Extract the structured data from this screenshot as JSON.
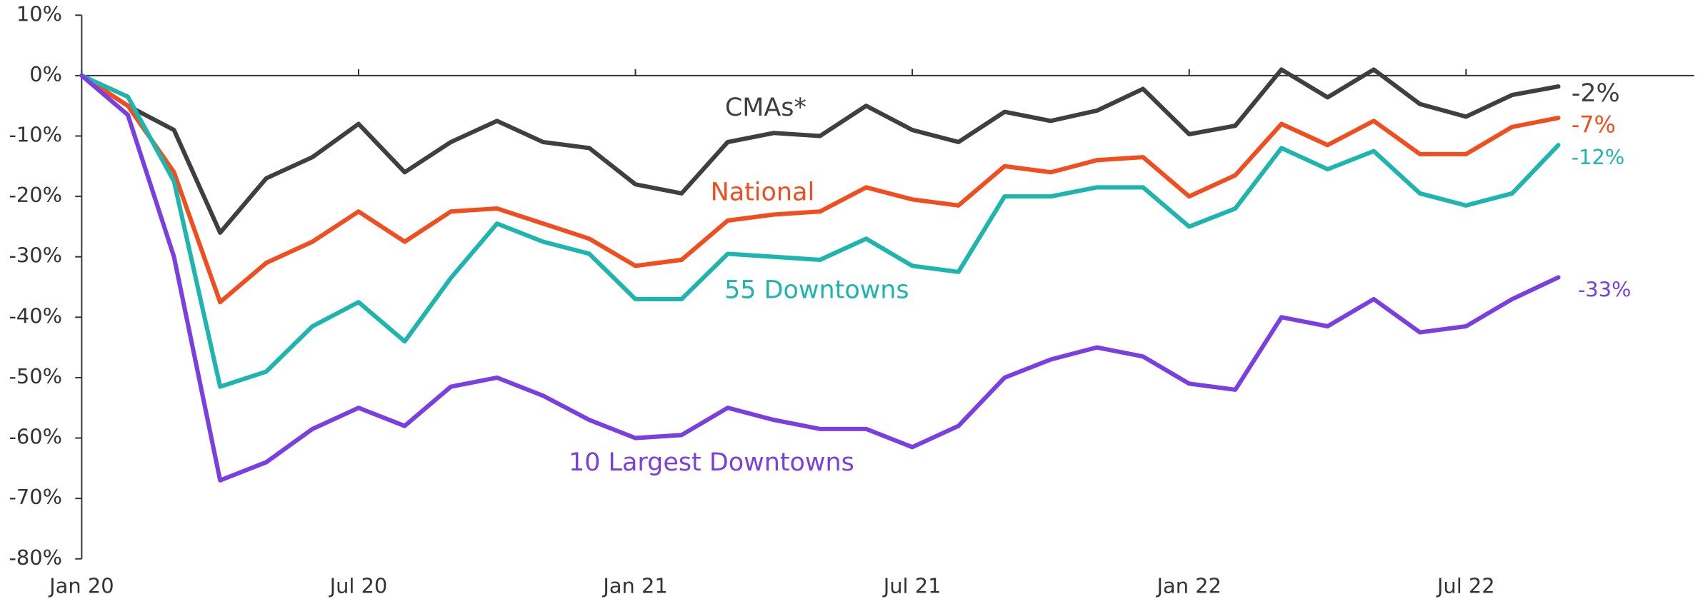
{
  "chart_data": {
    "type": "line",
    "categories": [
      "Jan 20",
      null,
      null,
      null,
      null,
      null,
      "Jul 20",
      null,
      null,
      null,
      null,
      null,
      "Jan 21",
      null,
      null,
      null,
      null,
      null,
      "Jul 21",
      null,
      null,
      null,
      null,
      null,
      "Jan 22",
      null,
      null,
      null,
      null,
      null,
      "Jul 22",
      null,
      null
    ],
    "ylim": [
      -80,
      10
    ],
    "yticks": [
      {
        "value": 10,
        "label": "10%"
      },
      {
        "value": 0,
        "label": "0%"
      },
      {
        "value": -10,
        "label": "-10%"
      },
      {
        "value": -20,
        "label": "-20%"
      },
      {
        "value": -30,
        "label": "-30%"
      },
      {
        "value": -40,
        "label": "-40%"
      },
      {
        "value": -50,
        "label": "-50%"
      },
      {
        "value": -60,
        "label": "-60%"
      },
      {
        "value": -70,
        "label": "-70%"
      },
      {
        "value": -80,
        "label": "-80%"
      }
    ],
    "series": [
      {
        "name": "CMAs*",
        "color": "#3f3f3f",
        "values": [
          0,
          -5,
          -9,
          -26,
          -17,
          -13.5,
          -8,
          -16,
          -11,
          -7.5,
          -11,
          -12,
          -18,
          -19.5,
          -11,
          -9.5,
          -10,
          -5,
          -9,
          -11,
          -6,
          -7.5,
          -5.8,
          -2.2,
          -9.7,
          -8.3,
          1,
          -3.6,
          1,
          -4.7,
          -6.8,
          -3.2,
          -1.8
        ],
        "value_labels": [
          null,
          null,
          null,
          null,
          null,
          null,
          null,
          null,
          null,
          null,
          null,
          null,
          null,
          null,
          null,
          null,
          null,
          null,
          null,
          null,
          null,
          null,
          null,
          null,
          null,
          null,
          null,
          null,
          null,
          null,
          null,
          null,
          "-2%"
        ]
      },
      {
        "name": "National",
        "color": "#f04e1e",
        "values": [
          0,
          -5,
          -16,
          -37.5,
          -31,
          -27.5,
          -22.5,
          -27.5,
          -22.5,
          -22,
          -24.5,
          -27,
          -31.5,
          -30.5,
          -24,
          -23,
          -22.5,
          -18.5,
          -20.5,
          -21.5,
          -15,
          -16,
          -14,
          -13.5,
          -20,
          -16.5,
          -8,
          -11.5,
          -7.5,
          -13,
          -13,
          -8.5,
          -7
        ],
        "value_labels": [
          null,
          null,
          null,
          null,
          null,
          null,
          null,
          null,
          null,
          null,
          null,
          null,
          null,
          null,
          null,
          null,
          null,
          null,
          null,
          null,
          null,
          null,
          null,
          null,
          null,
          null,
          null,
          null,
          null,
          null,
          null,
          null,
          "-7%"
        ]
      },
      {
        "name": "55 Downtowns",
        "color": "#1db5ad",
        "values": [
          0,
          -3.5,
          -17.5,
          -51.5,
          -49,
          -41.5,
          -37.5,
          -44,
          -33.5,
          -24.5,
          -27.5,
          -29.5,
          -37,
          -37,
          -29.5,
          -30,
          -30.5,
          -27,
          -31.5,
          -32.5,
          -20,
          -20,
          -18.5,
          -18.5,
          -25,
          -22,
          -12,
          -15.5,
          -12.5,
          -19.5,
          -21.5,
          -19.5,
          -11.5
        ],
        "value_labels": [
          null,
          null,
          null,
          null,
          null,
          null,
          null,
          null,
          null,
          null,
          null,
          null,
          null,
          null,
          null,
          null,
          null,
          null,
          null,
          null,
          null,
          null,
          null,
          null,
          null,
          null,
          null,
          null,
          null,
          null,
          null,
          null,
          "-12%"
        ]
      },
      {
        "name": "10 Largest Downtowns",
        "color": "#7a3fe0",
        "values": [
          0,
          -6.5,
          -30,
          -67,
          -64,
          -58.5,
          -55,
          -58,
          -51.5,
          -50,
          -53,
          -57,
          -60,
          -59.5,
          -55,
          -57,
          -58.5,
          -58.5,
          -61.5,
          -58,
          -50,
          -47,
          -45,
          -46.5,
          -51,
          -52,
          -40,
          -41.5,
          -37,
          -42.5,
          -41.5,
          -37,
          -33.4
        ],
        "value_labels": [
          null,
          null,
          null,
          null,
          null,
          null,
          null,
          null,
          null,
          null,
          null,
          null,
          null,
          null,
          null,
          null,
          null,
          null,
          null,
          null,
          null,
          null,
          null,
          null,
          null,
          null,
          null,
          null,
          null,
          null,
          null,
          null,
          "-33%"
        ]
      }
    ]
  }
}
